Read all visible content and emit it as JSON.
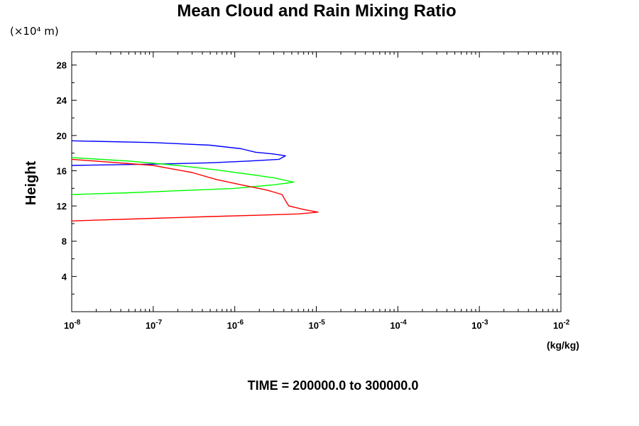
{
  "chart_data": {
    "type": "line",
    "title": "Mean Cloud and Rain Mixing Ratio",
    "y_unit_note": "(×10⁴ m)",
    "ylabel": "Height",
    "xunit": "(kg/kg)",
    "footer": "TIME = 200000.0 to 300000.0",
    "xscale": "log",
    "xlim": [
      1e-08,
      0.01
    ],
    "ylim": [
      0,
      29.5
    ],
    "x_tick_bases": [
      "10",
      "10",
      "10",
      "10",
      "10",
      "10",
      "10"
    ],
    "x_tick_exponents": [
      "-8",
      "-7",
      "-6",
      "-5",
      "-4",
      "-3",
      "-2"
    ],
    "x_tick_values": [
      1e-08,
      1e-07,
      1e-06,
      1e-05,
      0.0001,
      0.001,
      0.01
    ],
    "y_tick_labels": [
      "4",
      "8",
      "12",
      "16",
      "20",
      "24",
      "28"
    ],
    "y_tick_values": [
      4,
      8,
      12,
      16,
      20,
      24,
      28
    ],
    "y_minor_values": [
      2,
      6,
      10,
      14,
      18,
      22,
      26
    ],
    "grid": false,
    "legend": "none",
    "series": [
      {
        "color": "#0000ff",
        "points": [
          [
            1e-08,
            19.4
          ],
          [
            1e-07,
            19.2
          ],
          [
            5e-07,
            18.9
          ],
          [
            1.2e-06,
            18.5
          ],
          [
            1.8e-06,
            18.1
          ],
          [
            3e-06,
            17.9
          ],
          [
            4.2e-06,
            17.7
          ],
          [
            3.5e-06,
            17.3
          ],
          [
            1.5e-06,
            17.1
          ],
          [
            5e-07,
            16.9
          ],
          [
            1e-07,
            16.75
          ],
          [
            1e-08,
            16.6
          ]
        ]
      },
      {
        "color": "#00ff00",
        "points": [
          [
            1e-08,
            17.5
          ],
          [
            5e-08,
            17.1
          ],
          [
            2e-07,
            16.6
          ],
          [
            6e-07,
            16.1
          ],
          [
            1.5e-06,
            15.6
          ],
          [
            3e-06,
            15.2
          ],
          [
            5.3e-06,
            14.7
          ],
          [
            3e-06,
            14.4
          ],
          [
            1e-06,
            14.0
          ],
          [
            3e-07,
            13.8
          ],
          [
            5e-08,
            13.5
          ],
          [
            1e-08,
            13.3
          ]
        ]
      },
      {
        "color": "#ff0000",
        "points": [
          [
            1e-08,
            17.3
          ],
          [
            1e-07,
            16.6
          ],
          [
            3e-07,
            15.8
          ],
          [
            6e-07,
            15.0
          ],
          [
            1.2e-06,
            14.4
          ],
          [
            2.5e-06,
            13.8
          ],
          [
            3.8e-06,
            13.3
          ],
          [
            4.2e-06,
            12.6
          ],
          [
            4.6e-06,
            12.0
          ],
          [
            7e-06,
            11.6
          ],
          [
            1.05e-05,
            11.3
          ],
          [
            6e-06,
            11.1
          ],
          [
            2e-06,
            10.95
          ],
          [
            5e-07,
            10.8
          ],
          [
            1e-07,
            10.6
          ],
          [
            1e-08,
            10.3
          ]
        ]
      }
    ]
  }
}
